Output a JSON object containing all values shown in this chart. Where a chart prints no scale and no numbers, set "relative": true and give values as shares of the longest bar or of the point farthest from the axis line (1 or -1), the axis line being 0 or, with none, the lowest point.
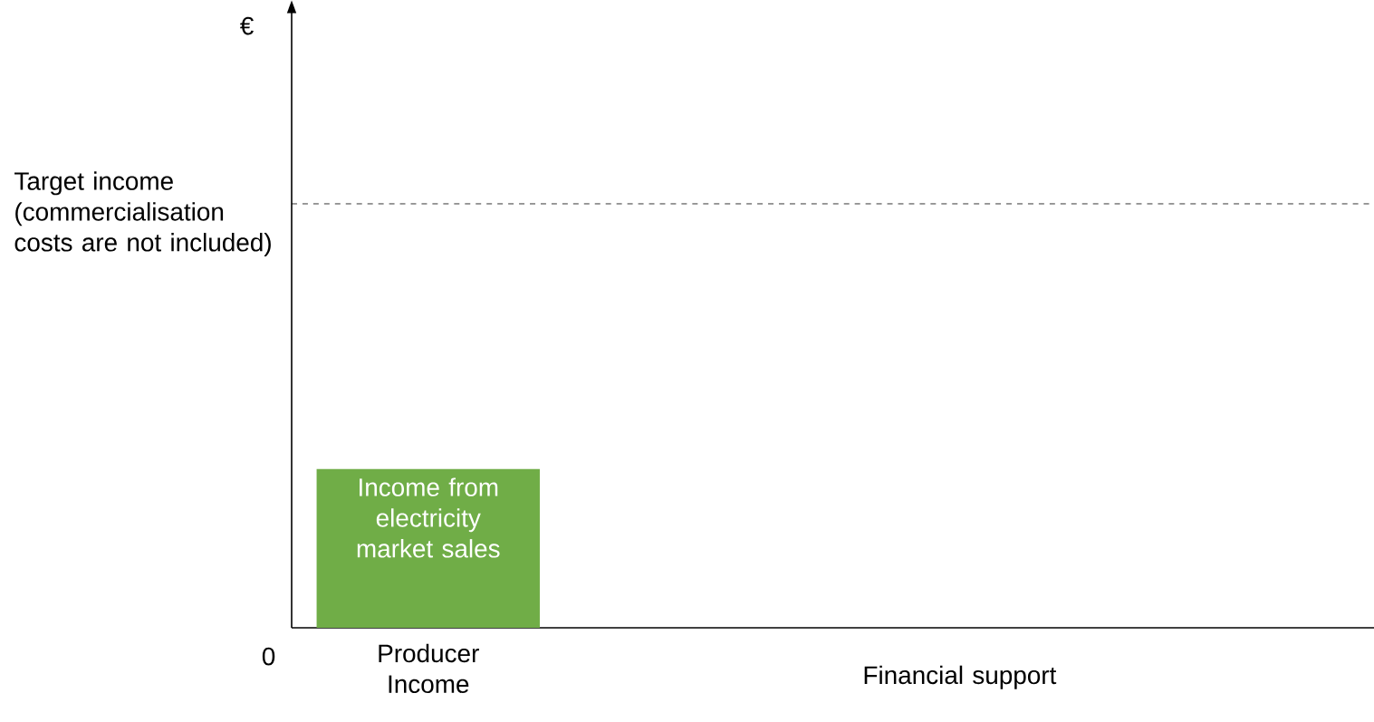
{
  "chart_data": {
    "type": "bar",
    "relative": true,
    "categories": [
      "Producer Income",
      "Financial support"
    ],
    "series": [
      {
        "name": "Income from electricity market sales",
        "color": "#70ad47",
        "values": [
          1,
          null
        ]
      }
    ],
    "ref_lines": [
      {
        "axis": "y",
        "value": 2.67,
        "label": "Target income (commercialisation costs are not included)",
        "color": "#000000",
        "line_style": "dashed"
      }
    ],
    "annotations": [
      "€",
      "0"
    ],
    "legend": false
  }
}
